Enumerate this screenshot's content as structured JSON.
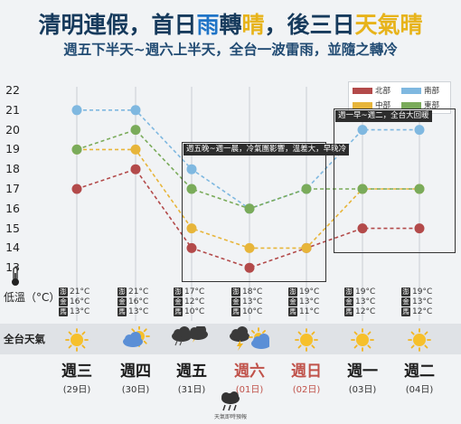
{
  "header": {
    "title_parts": [
      "清明連假，首日",
      "雨",
      "轉",
      "晴",
      "，後三日",
      "天氣晴"
    ],
    "subtitle": "週五下半天~週六上半天，全台一波雷雨，並隨之轉冷"
  },
  "labels": {
    "low_temp": "低溫（°C）",
    "weather_row": "全台天氣",
    "source": "天氣即時預報"
  },
  "legend": {
    "north": "北部",
    "south": "南部",
    "central": "中部",
    "east": "東部"
  },
  "annotations": {
    "fri_sat": "週五晚~週一晨，冷氣團影響，溫差大，早晚冷",
    "mon_tue": "週一早~週二，全台大回暖"
  },
  "region_badges": [
    "澎",
    "金",
    "馬"
  ],
  "days": [
    {
      "name": "週三",
      "date": "(29日)",
      "weekend": false,
      "weather": "sunny",
      "islands": [
        "21°C",
        "16°C",
        "13°C"
      ]
    },
    {
      "name": "週四",
      "date": "(30日)",
      "weekend": false,
      "weather": "partly-cloudy",
      "islands": [
        "21°C",
        "16°C",
        "13°C"
      ]
    },
    {
      "name": "週五",
      "date": "(31日)",
      "weekend": false,
      "weather": "thunderstorm",
      "islands": [
        "17°C",
        "12°C",
        "10°C"
      ]
    },
    {
      "name": "週六",
      "date": "(01日)",
      "weekend": true,
      "weather": "thunderstorm-to-partly-cloudy",
      "islands": [
        "18°C",
        "13°C",
        "10°C"
      ]
    },
    {
      "name": "週日",
      "date": "(02日)",
      "weekend": true,
      "weather": "sunny",
      "islands": [
        "19°C",
        "13°C",
        "11°C"
      ]
    },
    {
      "name": "週一",
      "date": "(03日)",
      "weekend": false,
      "weather": "sunny",
      "islands": [
        "19°C",
        "13°C",
        "12°C"
      ]
    },
    {
      "name": "週二",
      "date": "(04日)",
      "weekend": false,
      "weather": "sunny",
      "islands": [
        "19°C",
        "13°C",
        "12°C"
      ]
    }
  ],
  "chart_data": {
    "type": "line",
    "title": "",
    "xlabel": "",
    "ylabel": "低溫（°C）",
    "categories": [
      "週三",
      "週四",
      "週五",
      "週六",
      "週日",
      "週一",
      "週二"
    ],
    "ylim": [
      12,
      22
    ],
    "yticks": [
      13,
      14,
      15,
      16,
      17,
      18,
      19,
      20,
      21,
      22
    ],
    "grid": "vertical",
    "legend_position": "top-right",
    "series": [
      {
        "name": "北部",
        "color": "#b34a4a",
        "values": [
          17,
          18,
          14,
          13,
          14,
          15,
          15
        ]
      },
      {
        "name": "中部",
        "color": "#e7b53a",
        "values": [
          19,
          19,
          15,
          14,
          14,
          17,
          17
        ]
      },
      {
        "name": "南部",
        "color": "#7fb8e0",
        "values": [
          21,
          21,
          18,
          16,
          17,
          20,
          20
        ]
      },
      {
        "name": "東部",
        "color": "#7aab5a",
        "values": [
          19,
          20,
          17,
          16,
          17,
          17,
          17
        ]
      }
    ]
  }
}
